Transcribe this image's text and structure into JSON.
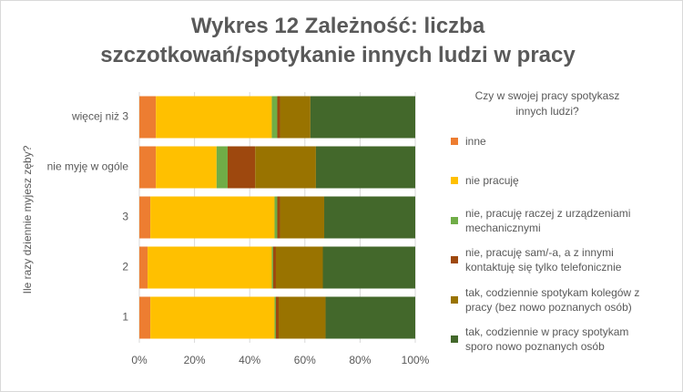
{
  "chart_data": {
    "type": "stacked-bar-horizontal",
    "title": "Wykres 12 Zależność: liczba szczotkowań/spotykanie innych ludzi w pracy",
    "y_axis_label": "Ile razy dziennie myjesz zęby?",
    "legend_title": "Czy w swojej pracy spotykasz innych ludzi?",
    "categories": [
      "więcej niż 3",
      "nie myję w ogóle",
      "3",
      "2",
      "1"
    ],
    "series": [
      {
        "name": "inne",
        "color": "#ed7d31",
        "values": [
          6,
          6,
          4,
          3,
          4
        ]
      },
      {
        "name": "nie pracuję",
        "color": "#ffc000",
        "values": [
          42,
          22,
          45,
          45,
          45
        ]
      },
      {
        "name": "nie, pracuję raczej z urządzeniami mechanicznymi",
        "color": "#70ad47",
        "values": [
          2,
          4,
          1,
          0.5,
          0.5
        ]
      },
      {
        "name": "nie, pracuję sam/-a, a z innymi kontaktuję się tylko telefonicznie",
        "color": "#9e480e",
        "values": [
          1,
          10,
          1,
          1,
          1
        ]
      },
      {
        "name": "tak, codziennie spotykam kolegów z pracy (bez nowo poznanych osób)",
        "color": "#997300",
        "values": [
          11,
          22,
          16,
          17,
          17
        ]
      },
      {
        "name": "tak, codziennie w pracy spotykam sporo nowo poznanych osób",
        "color": "#43682b",
        "values": [
          38,
          36,
          33,
          33.5,
          32.5
        ]
      }
    ],
    "xlim": [
      0,
      100
    ],
    "xticks": [
      {
        "value": 0,
        "label": "0%"
      },
      {
        "value": 20,
        "label": "20%"
      },
      {
        "value": 40,
        "label": "40%"
      },
      {
        "value": 60,
        "label": "60%"
      },
      {
        "value": 80,
        "label": "80%"
      },
      {
        "value": 100,
        "label": "100%"
      }
    ],
    "grid": true,
    "legend": "right"
  }
}
